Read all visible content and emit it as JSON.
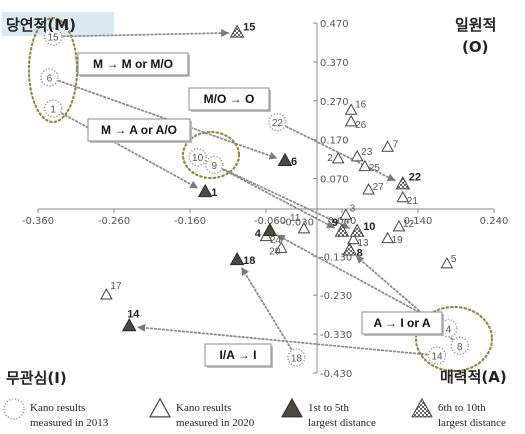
{
  "chart_data": {
    "type": "scatter",
    "xlim": [
      -0.36,
      0.24
    ],
    "ylim": [
      -0.43,
      0.47
    ],
    "x_ticks": [
      "-0.360",
      "-0.260",
      "-0.160",
      "-0.060",
      "0.040",
      "0.140",
      "0.240"
    ],
    "y_ticks": [
      "0.470",
      "0.370",
      "0.270",
      "0.170",
      "0.070",
      "-0.030",
      "-0.130",
      "-0.230",
      "-0.330",
      "-0.430"
    ],
    "quadrants": {
      "top_left": "당연적(M)",
      "top_right_1": "일원적",
      "top_right_2": "(O)",
      "bottom_left": "무관심(I)",
      "bottom_right": "매력적(A)"
    },
    "series": [
      {
        "name": "Kano results measured in 2013",
        "marker": "dotted-circle",
        "points": [
          {
            "label": "15",
            "x": -0.34,
            "y": 0.435
          },
          {
            "label": "6",
            "x": -0.345,
            "y": 0.33
          },
          {
            "label": "1",
            "x": -0.34,
            "y": 0.25
          },
          {
            "label": "10",
            "x": -0.15,
            "y": 0.125
          },
          {
            "label": "9",
            "x": -0.128,
            "y": 0.105
          },
          {
            "label": "22",
            "x": -0.045,
            "y": 0.215
          },
          {
            "label": "18",
            "x": -0.02,
            "y": -0.39
          },
          {
            "label": "4",
            "x": 0.18,
            "y": -0.315
          },
          {
            "label": "8",
            "x": 0.195,
            "y": -0.36
          },
          {
            "label": "14",
            "x": 0.165,
            "y": -0.385
          }
        ]
      },
      {
        "name": "Kano results measured in 2020",
        "marker": "triangle",
        "points": [
          {
            "label": "16",
            "x": 0.052,
            "y": 0.245
          },
          {
            "label": "26",
            "x": 0.052,
            "y": 0.215
          },
          {
            "label": "7",
            "x": 0.1,
            "y": 0.15
          },
          {
            "label": "2",
            "x": 0.035,
            "y": 0.12
          },
          {
            "label": "23",
            "x": 0.06,
            "y": 0.125
          },
          {
            "label": "25",
            "x": 0.07,
            "y": 0.1
          },
          {
            "label": "27",
            "x": 0.075,
            "y": 0.04
          },
          {
            "label": "21",
            "x": 0.12,
            "y": 0.02
          },
          {
            "label": "3",
            "x": 0.045,
            "y": -0.025
          },
          {
            "label": "12",
            "x": 0.115,
            "y": -0.055
          },
          {
            "label": "11",
            "x": -0.01,
            "y": -0.06
          },
          {
            "label": "19",
            "x": 0.1,
            "y": -0.085
          },
          {
            "label": "13",
            "x": 0.055,
            "y": -0.088
          },
          {
            "label": "24",
            "x": -0.06,
            "y": -0.08
          },
          {
            "label": "20",
            "x": -0.04,
            "y": -0.11
          },
          {
            "label": "5",
            "x": 0.178,
            "y": -0.15
          },
          {
            "label": "17",
            "x": -0.27,
            "y": -0.23
          }
        ]
      },
      {
        "name": "1st to 5th largest distance",
        "marker": "filled-triangle",
        "points": [
          {
            "label": "6",
            "x": -0.035,
            "y": 0.115
          },
          {
            "label": "1",
            "x": -0.14,
            "y": 0.035
          },
          {
            "label": "4",
            "x": -0.055,
            "y": -0.065
          },
          {
            "label": "18",
            "x": -0.098,
            "y": -0.14
          },
          {
            "label": "14",
            "x": -0.24,
            "y": -0.31
          }
        ]
      },
      {
        "name": "6th to 10th largest distance",
        "marker": "checker-triangle",
        "points": [
          {
            "label": "15",
            "x": -0.098,
            "y": 0.445
          },
          {
            "label": "22",
            "x": 0.12,
            "y": 0.055
          },
          {
            "label": "9",
            "x": 0.04,
            "y": -0.067
          },
          {
            "label": "10",
            "x": 0.06,
            "y": -0.067
          },
          {
            "label": "8",
            "x": 0.05,
            "y": -0.115
          }
        ]
      }
    ],
    "arrows": [
      {
        "from": "15",
        "to": "15"
      },
      {
        "from": "6",
        "to": "6"
      },
      {
        "from": "1",
        "to": "1"
      },
      {
        "from": "10",
        "to": "10"
      },
      {
        "from": "9",
        "to": "9"
      },
      {
        "from": "22",
        "to": "22"
      },
      {
        "from": "18",
        "to": "18"
      },
      {
        "from": "4",
        "to": "4"
      },
      {
        "from": "8",
        "to": "8"
      },
      {
        "from": "14",
        "to": "14"
      }
    ],
    "annotations": [
      {
        "text": "M → M or M/O"
      },
      {
        "text": "M/O → O"
      },
      {
        "text": "M → A or A/O"
      },
      {
        "text": "A → I or A"
      },
      {
        "text": "I/A → I"
      }
    ],
    "legend": [
      {
        "marker": "dotted-circle",
        "line1": "Kano results",
        "line2": "measured in 2013"
      },
      {
        "marker": "triangle",
        "line1": "Kano results",
        "line2": "measured in 2020"
      },
      {
        "marker": "filled-triangle",
        "line1": "1st to 5th",
        "line2": "largest distance"
      },
      {
        "marker": "checker-triangle",
        "line1": "6th to 10th",
        "line2": "largest distance"
      }
    ],
    "legend_position": "bottom",
    "grid": false
  }
}
